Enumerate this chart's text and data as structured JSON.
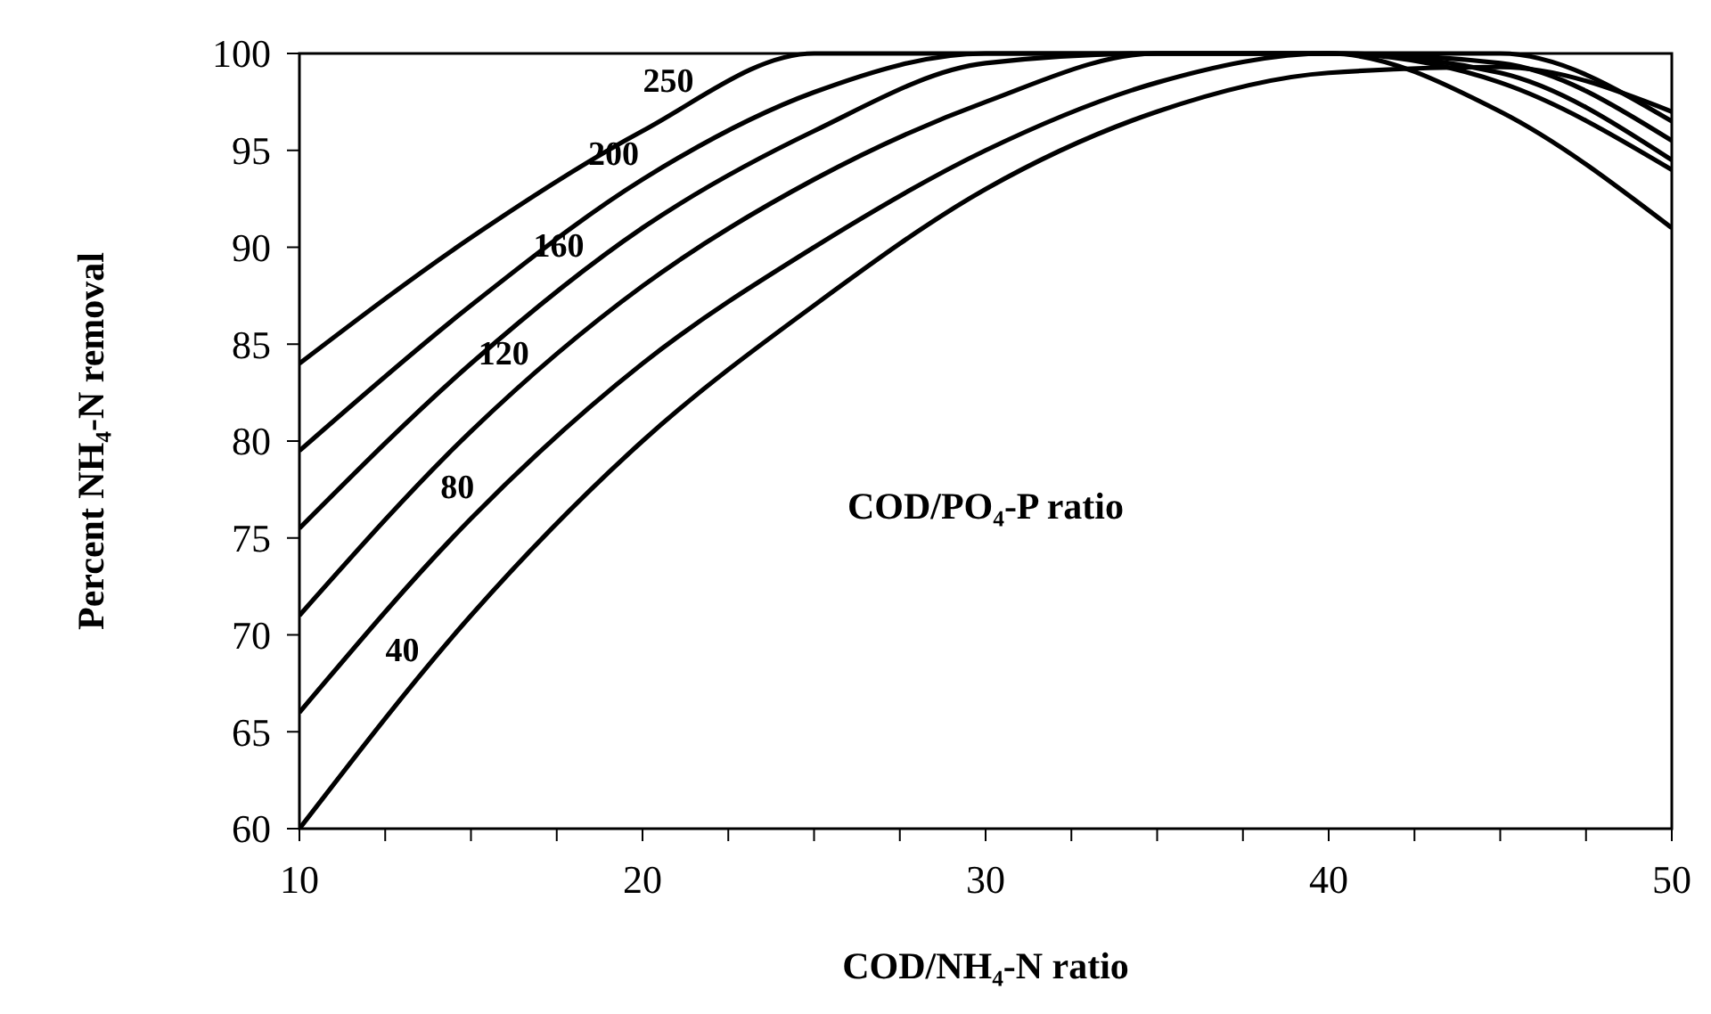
{
  "chart_data": {
    "type": "line",
    "xlabel": "COD/NH₄-N ratio",
    "ylabel": "Percent NH₄-N removal",
    "annotations": [
      "COD/PO₄-P ratio"
    ],
    "x": [
      10,
      15,
      20,
      25,
      30,
      35,
      40,
      45,
      50
    ],
    "xlim": [
      10,
      50
    ],
    "xticks": [
      10,
      20,
      30,
      40,
      50
    ],
    "ylim": [
      60,
      100
    ],
    "yticks": [
      60,
      65,
      70,
      75,
      80,
      85,
      90,
      95,
      100
    ],
    "grid": false,
    "marker": "none",
    "line_style": "solid",
    "series": [
      {
        "name": "40",
        "color": "#000000",
        "values": [
          60,
          71,
          80,
          87,
          93,
          97,
          99,
          99.3,
          97
        ]
      },
      {
        "name": "80",
        "color": "#000000",
        "values": [
          66,
          76,
          84,
          90,
          95,
          98.5,
          100,
          100,
          96.5
        ]
      },
      {
        "name": "120",
        "color": "#000000",
        "values": [
          71,
          80.5,
          88,
          93.5,
          97.5,
          100,
          100,
          99.5,
          95.5
        ]
      },
      {
        "name": "160",
        "color": "#000000",
        "values": [
          75.5,
          84,
          91,
          96,
          99.5,
          100,
          100,
          99,
          94.5
        ]
      },
      {
        "name": "200",
        "color": "#000000",
        "values": [
          79.5,
          87,
          93.5,
          98,
          100,
          100,
          100,
          98.5,
          94
        ]
      },
      {
        "name": "250",
        "color": "#000000",
        "values": [
          84,
          90.5,
          96,
          100,
          100,
          100,
          100,
          97,
          91
        ]
      }
    ]
  }
}
